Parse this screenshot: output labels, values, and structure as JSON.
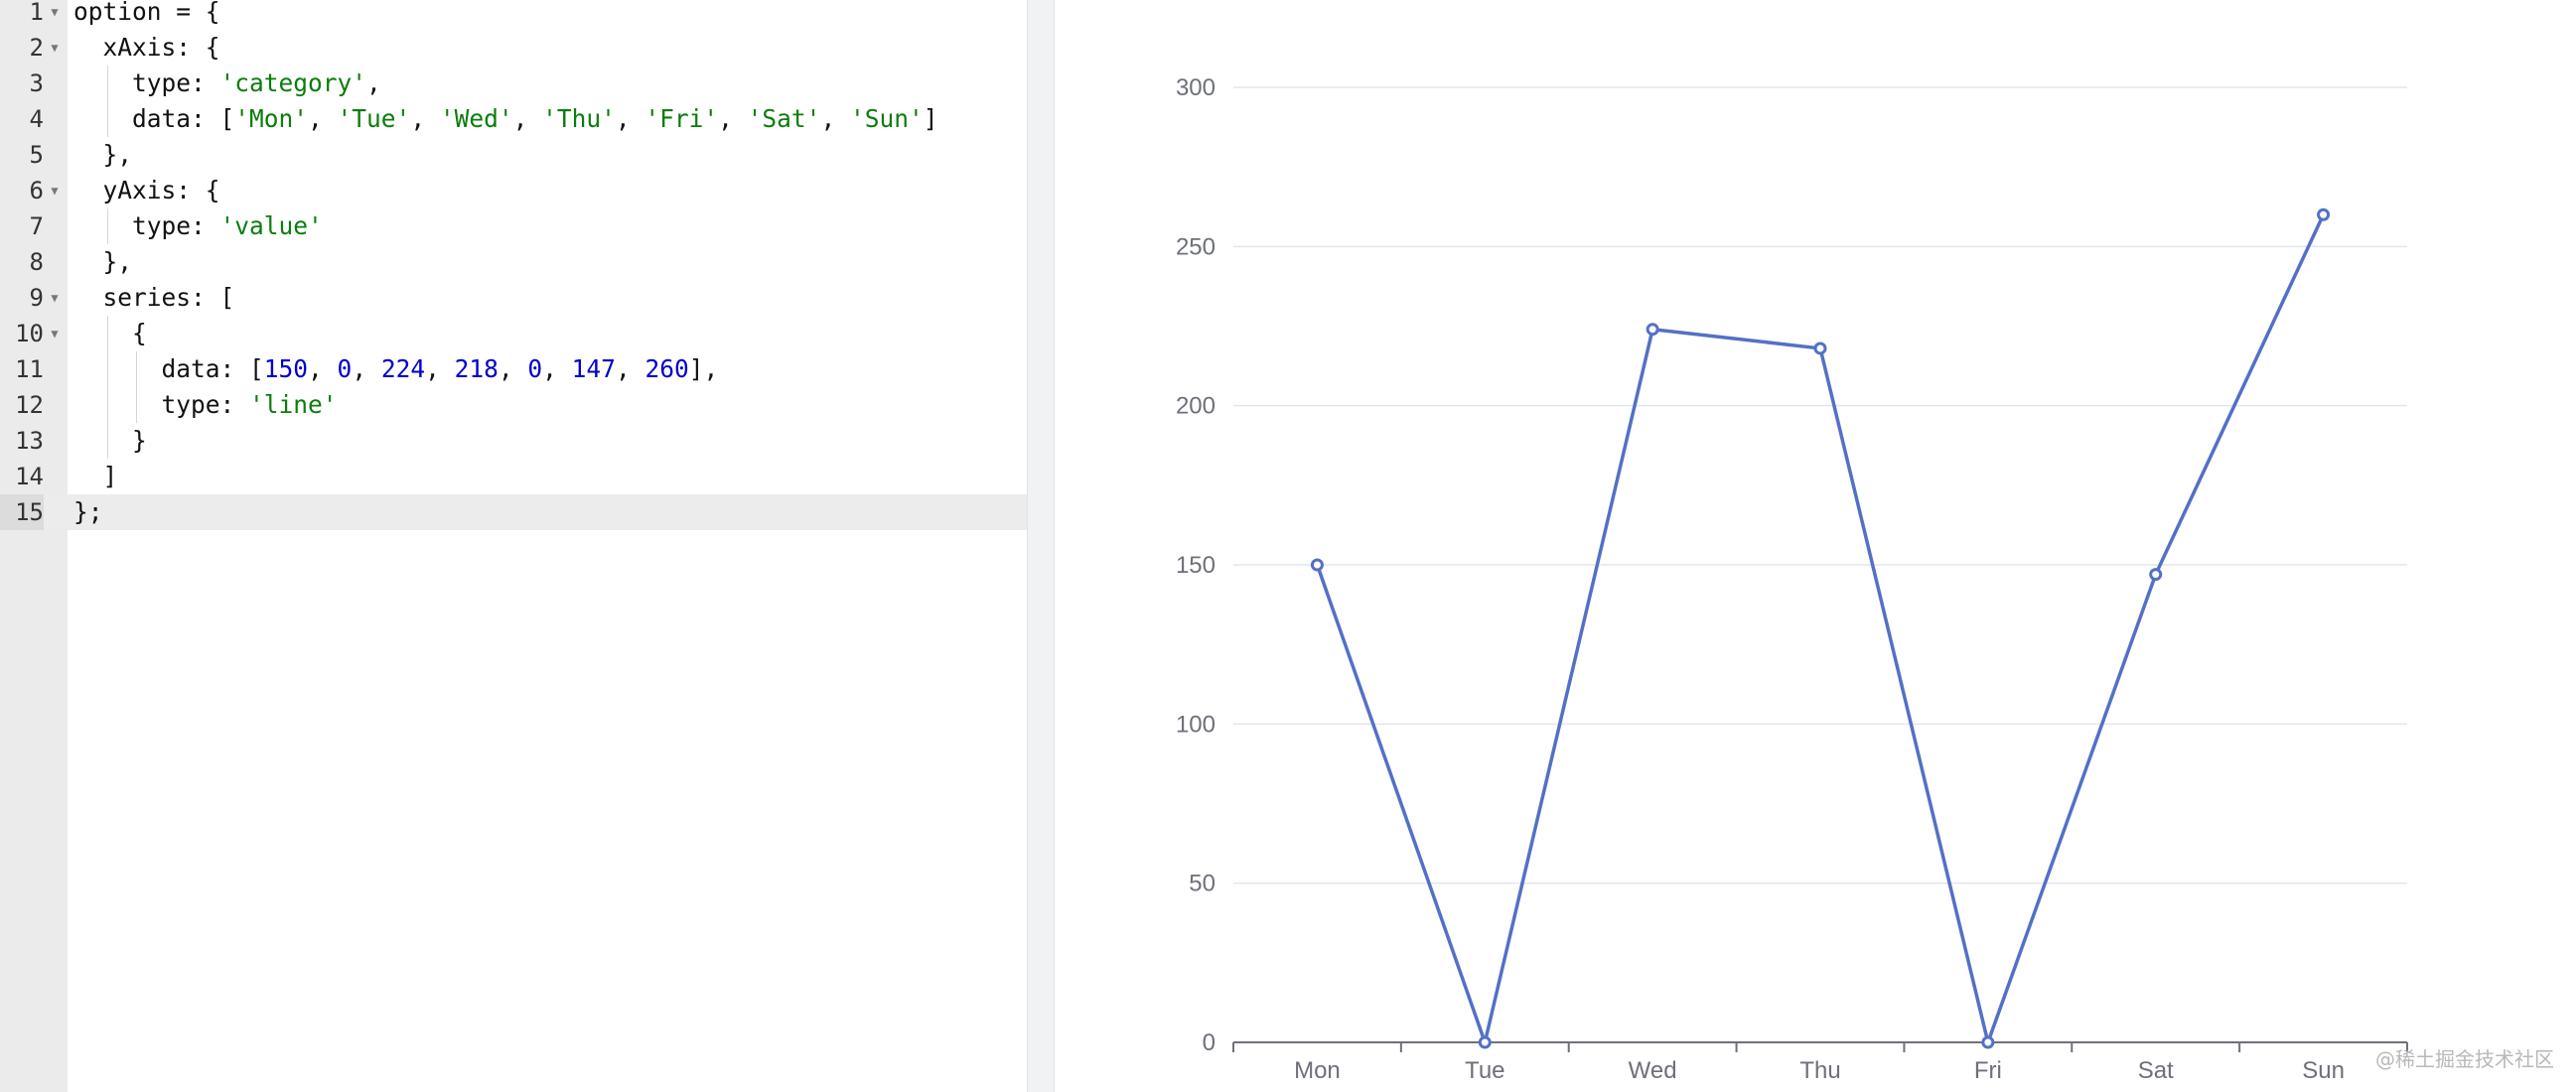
{
  "editor": {
    "lines": [
      {
        "n": "1",
        "fold": true,
        "indent": 0,
        "tokens": [
          [
            "p",
            "option = {"
          ]
        ]
      },
      {
        "n": "2",
        "fold": true,
        "indent": 1,
        "tokens": [
          [
            "p",
            "  xAxis: {"
          ]
        ]
      },
      {
        "n": "3",
        "fold": false,
        "indent": 2,
        "tokens": [
          [
            "p",
            "    type: "
          ],
          [
            "s",
            "'category'"
          ],
          [
            "p",
            ","
          ]
        ]
      },
      {
        "n": "4",
        "fold": false,
        "indent": 2,
        "tokens": [
          [
            "p",
            "    data: ["
          ],
          [
            "s",
            "'Mon'"
          ],
          [
            "p",
            ", "
          ],
          [
            "s",
            "'Tue'"
          ],
          [
            "p",
            ", "
          ],
          [
            "s",
            "'Wed'"
          ],
          [
            "p",
            ", "
          ],
          [
            "s",
            "'Thu'"
          ],
          [
            "p",
            ", "
          ],
          [
            "s",
            "'Fri'"
          ],
          [
            "p",
            ", "
          ],
          [
            "s",
            "'Sat'"
          ],
          [
            "p",
            ", "
          ],
          [
            "s",
            "'Sun'"
          ],
          [
            "p",
            "]"
          ]
        ]
      },
      {
        "n": "5",
        "fold": false,
        "indent": 1,
        "tokens": [
          [
            "p",
            "  },"
          ]
        ]
      },
      {
        "n": "6",
        "fold": true,
        "indent": 1,
        "tokens": [
          [
            "p",
            "  yAxis: {"
          ]
        ]
      },
      {
        "n": "7",
        "fold": false,
        "indent": 2,
        "tokens": [
          [
            "p",
            "    type: "
          ],
          [
            "s",
            "'value'"
          ]
        ]
      },
      {
        "n": "8",
        "fold": false,
        "indent": 1,
        "tokens": [
          [
            "p",
            "  },"
          ]
        ]
      },
      {
        "n": "9",
        "fold": true,
        "indent": 1,
        "tokens": [
          [
            "p",
            "  series: ["
          ]
        ]
      },
      {
        "n": "10",
        "fold": true,
        "indent": 2,
        "tokens": [
          [
            "p",
            "    {"
          ]
        ]
      },
      {
        "n": "11",
        "fold": false,
        "indent": 3,
        "tokens": [
          [
            "p",
            "      data: ["
          ],
          [
            "n",
            "150"
          ],
          [
            "p",
            ", "
          ],
          [
            "n",
            "0"
          ],
          [
            "p",
            ", "
          ],
          [
            "n",
            "224"
          ],
          [
            "p",
            ", "
          ],
          [
            "n",
            "218"
          ],
          [
            "p",
            ", "
          ],
          [
            "n",
            "0"
          ],
          [
            "p",
            ", "
          ],
          [
            "n",
            "147"
          ],
          [
            "p",
            ", "
          ],
          [
            "n",
            "260"
          ],
          [
            "p",
            "],"
          ]
        ]
      },
      {
        "n": "12",
        "fold": false,
        "indent": 3,
        "tokens": [
          [
            "p",
            "      type: "
          ],
          [
            "s",
            "'line'"
          ]
        ]
      },
      {
        "n": "13",
        "fold": false,
        "indent": 2,
        "tokens": [
          [
            "p",
            "    }"
          ]
        ]
      },
      {
        "n": "14",
        "fold": false,
        "indent": 1,
        "tokens": [
          [
            "p",
            "  ]"
          ]
        ]
      },
      {
        "n": "15",
        "fold": false,
        "indent": 0,
        "active": true,
        "tokens": [
          [
            "p",
            "};"
          ]
        ]
      }
    ]
  },
  "colors": {
    "string": "#0b7d0b",
    "number": "#0000cd",
    "series_line": "#5470c6",
    "grid": "#e0e6f1",
    "axis": "#6e7079"
  },
  "chart_data": {
    "type": "line",
    "categories": [
      "Mon",
      "Tue",
      "Wed",
      "Thu",
      "Fri",
      "Sat",
      "Sun"
    ],
    "series": [
      {
        "values": [
          150,
          0,
          224,
          218,
          0,
          147,
          260
        ]
      }
    ],
    "yticks": [
      "0",
      "50",
      "100",
      "150",
      "200",
      "250",
      "300"
    ],
    "ylim": [
      0,
      300
    ],
    "grid": true,
    "legend": "none"
  },
  "watermark": "@稀土掘金技术社区"
}
